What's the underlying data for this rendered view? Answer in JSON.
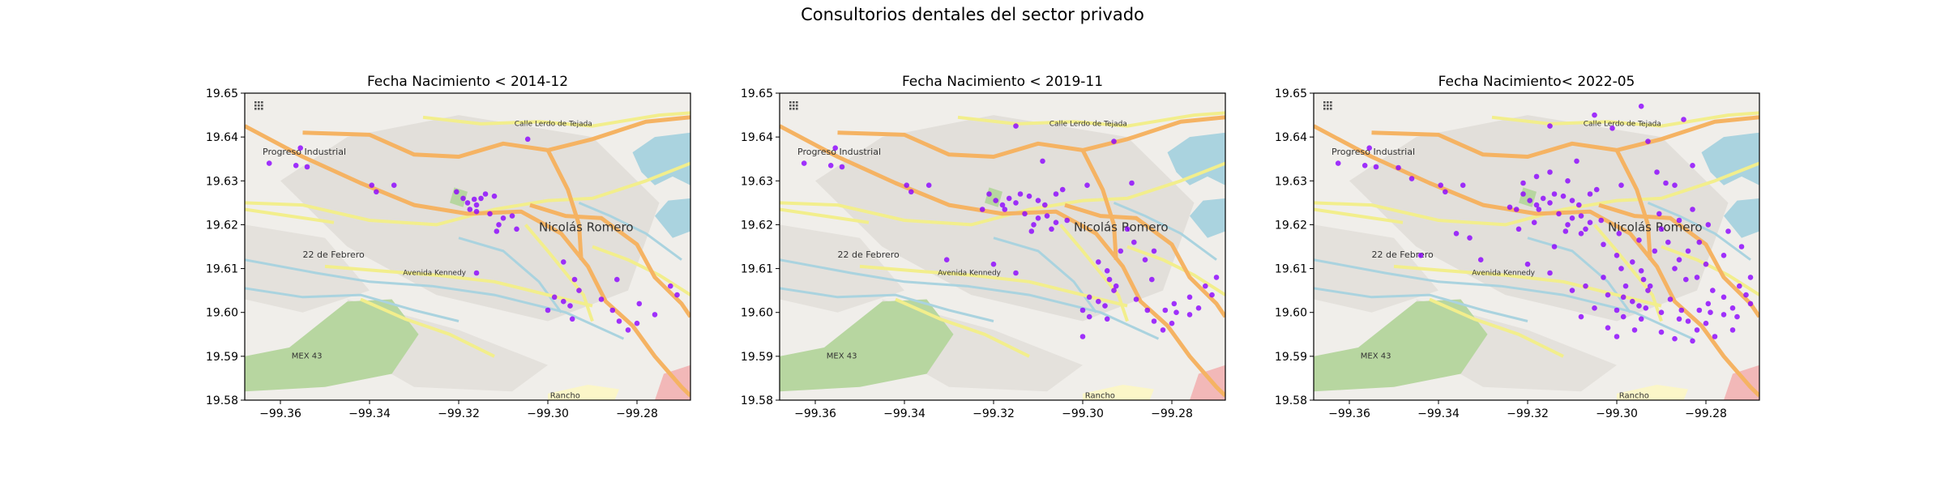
{
  "figure": {
    "title": "Consultorios dentales del sector privado"
  },
  "colors": {
    "points": "#8b00ff",
    "road_major": "#f5b363",
    "road_minor": "#f2ee8c",
    "water": "#aad3df",
    "park": "#b7d6a0",
    "land": "#f0eeea"
  },
  "map_labels": [
    {
      "text": "Progreso Industrial",
      "lon": -99.364,
      "lat": 19.636,
      "size": 11
    },
    {
      "text": "Nicolás Romero",
      "lon": -99.302,
      "lat": 19.6185,
      "size": 15
    },
    {
      "text": "22 de Febrero",
      "lon": -99.355,
      "lat": 19.6125,
      "size": 11
    },
    {
      "text": "Avenida Kennedy",
      "lon": -99.3325,
      "lat": 19.6085,
      "size": 9
    },
    {
      "text": "Calle Lerdo de Tejada",
      "lon": -99.3075,
      "lat": 19.6425,
      "size": 9
    },
    {
      "text": "MEX 43",
      "lon": -99.3575,
      "lat": 19.5895,
      "size": 10
    },
    {
      "text": "Rancho",
      "lon": -99.2995,
      "lat": 19.5805,
      "size": 10
    }
  ],
  "chart_data": [
    {
      "type": "scatter",
      "title": "Fecha Nacimiento < 2014-12",
      "xlim": [
        -99.368,
        -99.268
      ],
      "ylim": [
        19.58,
        19.65
      ],
      "xticks": [
        "−99.36",
        "−99.34",
        "−99.32",
        "−99.30",
        "−99.28"
      ],
      "xtick_values": [
        -99.36,
        -99.34,
        -99.32,
        -99.3,
        -99.28
      ],
      "yticks": [
        "19.58",
        "19.59",
        "19.60",
        "19.61",
        "19.62",
        "19.63",
        "19.64",
        "19.65"
      ],
      "ytick_values": [
        19.58,
        19.59,
        19.6,
        19.61,
        19.62,
        19.63,
        19.64,
        19.65
      ],
      "points": [
        [
          -99.3555,
          19.6375
        ],
        [
          -99.3625,
          19.634
        ],
        [
          -99.3565,
          19.6335
        ],
        [
          -99.354,
          19.6332
        ],
        [
          -99.3395,
          19.629
        ],
        [
          -99.3385,
          19.6275
        ],
        [
          -99.3345,
          19.629
        ],
        [
          -99.3205,
          19.6275
        ],
        [
          -99.319,
          19.626
        ],
        [
          -99.318,
          19.625
        ],
        [
          -99.3165,
          19.6258
        ],
        [
          -99.316,
          19.6245
        ],
        [
          -99.315,
          19.626
        ],
        [
          -99.3175,
          19.6235
        ],
        [
          -99.314,
          19.627
        ],
        [
          -99.312,
          19.6265
        ],
        [
          -99.313,
          19.6225
        ],
        [
          -99.31,
          19.6215
        ],
        [
          -99.308,
          19.622
        ],
        [
          -99.311,
          19.62
        ],
        [
          -99.307,
          19.619
        ],
        [
          -99.3115,
          19.6185
        ],
        [
          -99.316,
          19.623
        ],
        [
          -99.3045,
          19.6395
        ],
        [
          -99.316,
          19.609
        ],
        [
          -99.2965,
          19.6115
        ],
        [
          -99.294,
          19.6075
        ],
        [
          -99.293,
          19.605
        ],
        [
          -99.2985,
          19.6035
        ],
        [
          -99.3,
          19.6005
        ],
        [
          -99.2965,
          19.6025
        ],
        [
          -99.288,
          19.603
        ],
        [
          -99.2855,
          19.6005
        ],
        [
          -99.284,
          19.598
        ],
        [
          -99.282,
          19.596
        ],
        [
          -99.28,
          19.5975
        ],
        [
          -99.276,
          19.5995
        ],
        [
          -99.2795,
          19.602
        ],
        [
          -99.2725,
          19.606
        ],
        [
          -99.271,
          19.604
        ],
        [
          -99.2845,
          19.6075
        ],
        [
          -99.2945,
          19.5985
        ],
        [
          -99.295,
          19.6015
        ]
      ]
    },
    {
      "type": "scatter",
      "title": "Fecha Nacimiento < 2019-11",
      "xlim": [
        -99.368,
        -99.268
      ],
      "ylim": [
        19.58,
        19.65
      ],
      "xticks": [
        "−99.36",
        "−99.34",
        "−99.32",
        "−99.30",
        "−99.28"
      ],
      "xtick_values": [
        -99.36,
        -99.34,
        -99.32,
        -99.3,
        -99.28
      ],
      "yticks": [
        "19.58",
        "19.59",
        "19.60",
        "19.61",
        "19.62",
        "19.63",
        "19.64",
        "19.65"
      ],
      "ytick_values": [
        19.58,
        19.59,
        19.6,
        19.61,
        19.62,
        19.63,
        19.64,
        19.65
      ],
      "points": [
        [
          -99.3555,
          19.6375
        ],
        [
          -99.3625,
          19.634
        ],
        [
          -99.3565,
          19.6335
        ],
        [
          -99.354,
          19.6332
        ],
        [
          -99.3395,
          19.629
        ],
        [
          -99.3385,
          19.6275
        ],
        [
          -99.3345,
          19.629
        ],
        [
          -99.3305,
          19.612
        ],
        [
          -99.3225,
          19.6235
        ],
        [
          -99.321,
          19.627
        ],
        [
          -99.3195,
          19.6255
        ],
        [
          -99.318,
          19.6245
        ],
        [
          -99.3165,
          19.626
        ],
        [
          -99.315,
          19.625
        ],
        [
          -99.3175,
          19.6235
        ],
        [
          -99.314,
          19.627
        ],
        [
          -99.312,
          19.6265
        ],
        [
          -99.31,
          19.6255
        ],
        [
          -99.3085,
          19.6245
        ],
        [
          -99.306,
          19.627
        ],
        [
          -99.313,
          19.6225
        ],
        [
          -99.31,
          19.6215
        ],
        [
          -99.308,
          19.622
        ],
        [
          -99.311,
          19.62
        ],
        [
          -99.307,
          19.619
        ],
        [
          -99.3115,
          19.6185
        ],
        [
          -99.306,
          19.6205
        ],
        [
          -99.3035,
          19.621
        ],
        [
          -99.315,
          19.6425
        ],
        [
          -99.309,
          19.6345
        ],
        [
          -99.3045,
          19.628
        ],
        [
          -99.299,
          19.629
        ],
        [
          -99.293,
          19.639
        ],
        [
          -99.289,
          19.6295
        ],
        [
          -99.32,
          19.611
        ],
        [
          -99.315,
          19.609
        ],
        [
          -99.2965,
          19.6115
        ],
        [
          -99.2945,
          19.6095
        ],
        [
          -99.294,
          19.6075
        ],
        [
          -99.2925,
          19.606
        ],
        [
          -99.293,
          19.605
        ],
        [
          -99.2985,
          19.6035
        ],
        [
          -99.3,
          19.6005
        ],
        [
          -99.2965,
          19.6025
        ],
        [
          -99.288,
          19.603
        ],
        [
          -99.2855,
          19.6005
        ],
        [
          -99.284,
          19.598
        ],
        [
          -99.282,
          19.596
        ],
        [
          -99.28,
          19.5975
        ],
        [
          -99.276,
          19.5995
        ],
        [
          -99.2795,
          19.602
        ],
        [
          -99.2725,
          19.606
        ],
        [
          -99.271,
          19.604
        ],
        [
          -99.2845,
          19.6075
        ],
        [
          -99.2945,
          19.5985
        ],
        [
          -99.295,
          19.6015
        ],
        [
          -99.2915,
          19.614
        ],
        [
          -99.2885,
          19.616
        ],
        [
          -99.286,
          19.612
        ],
        [
          -99.29,
          19.619
        ],
        [
          -99.284,
          19.614
        ],
        [
          -99.276,
          19.6035
        ],
        [
          -99.274,
          19.601
        ],
        [
          -99.279,
          19.6
        ],
        [
          -99.2815,
          19.6005
        ],
        [
          -99.27,
          19.608
        ],
        [
          -99.3,
          19.5945
        ],
        [
          -99.2985,
          19.599
        ]
      ]
    },
    {
      "type": "scatter",
      "title": "Fecha Nacimiento< 2022-05",
      "xlim": [
        -99.368,
        -99.268
      ],
      "ylim": [
        19.58,
        19.65
      ],
      "xticks": [
        "−99.36",
        "−99.34",
        "−99.32",
        "−99.30",
        "−99.28"
      ],
      "xtick_values": [
        -99.36,
        -99.34,
        -99.32,
        -99.3,
        -99.28
      ],
      "yticks": [
        "19.58",
        "19.59",
        "19.60",
        "19.61",
        "19.62",
        "19.63",
        "19.64",
        "19.65"
      ],
      "ytick_values": [
        19.58,
        19.59,
        19.6,
        19.61,
        19.62,
        19.63,
        19.64,
        19.65
      ],
      "points": [
        [
          -99.3555,
          19.6375
        ],
        [
          -99.3625,
          19.634
        ],
        [
          -99.3565,
          19.6335
        ],
        [
          -99.354,
          19.6332
        ],
        [
          -99.349,
          19.633
        ],
        [
          -99.346,
          19.6305
        ],
        [
          -99.3395,
          19.629
        ],
        [
          -99.3385,
          19.6275
        ],
        [
          -99.3345,
          19.629
        ],
        [
          -99.3305,
          19.612
        ],
        [
          -99.344,
          19.613
        ],
        [
          -99.336,
          19.618
        ],
        [
          -99.333,
          19.617
        ],
        [
          -99.322,
          19.619
        ],
        [
          -99.3185,
          19.6205
        ],
        [
          -99.324,
          19.624
        ],
        [
          -99.3225,
          19.6235
        ],
        [
          -99.321,
          19.627
        ],
        [
          -99.3195,
          19.6255
        ],
        [
          -99.318,
          19.6245
        ],
        [
          -99.3165,
          19.626
        ],
        [
          -99.315,
          19.625
        ],
        [
          -99.3175,
          19.6235
        ],
        [
          -99.314,
          19.627
        ],
        [
          -99.312,
          19.6265
        ],
        [
          -99.31,
          19.6255
        ],
        [
          -99.3085,
          19.6245
        ],
        [
          -99.306,
          19.627
        ],
        [
          -99.313,
          19.6225
        ],
        [
          -99.31,
          19.6215
        ],
        [
          -99.308,
          19.622
        ],
        [
          -99.311,
          19.62
        ],
        [
          -99.307,
          19.619
        ],
        [
          -99.3115,
          19.6185
        ],
        [
          -99.306,
          19.6205
        ],
        [
          -99.3035,
          19.621
        ],
        [
          -99.321,
          19.6295
        ],
        [
          -99.318,
          19.631
        ],
        [
          -99.315,
          19.632
        ],
        [
          -99.311,
          19.63
        ],
        [
          -99.315,
          19.6425
        ],
        [
          -99.309,
          19.6345
        ],
        [
          -99.3045,
          19.628
        ],
        [
          -99.299,
          19.629
        ],
        [
          -99.293,
          19.639
        ],
        [
          -99.289,
          19.6295
        ],
        [
          -99.305,
          19.645
        ],
        [
          -99.301,
          19.642
        ],
        [
          -99.2945,
          19.647
        ],
        [
          -99.285,
          19.644
        ],
        [
          -99.32,
          19.611
        ],
        [
          -99.315,
          19.609
        ],
        [
          -99.2965,
          19.6115
        ],
        [
          -99.2945,
          19.6095
        ],
        [
          -99.294,
          19.6075
        ],
        [
          -99.2925,
          19.606
        ],
        [
          -99.293,
          19.605
        ],
        [
          -99.2985,
          19.6035
        ],
        [
          -99.3,
          19.6005
        ],
        [
          -99.2965,
          19.6025
        ],
        [
          -99.288,
          19.603
        ],
        [
          -99.2855,
          19.6005
        ],
        [
          -99.284,
          19.598
        ],
        [
          -99.282,
          19.596
        ],
        [
          -99.28,
          19.5975
        ],
        [
          -99.276,
          19.5995
        ],
        [
          -99.2795,
          19.602
        ],
        [
          -99.2725,
          19.606
        ],
        [
          -99.271,
          19.604
        ],
        [
          -99.2845,
          19.6075
        ],
        [
          -99.2945,
          19.5985
        ],
        [
          -99.295,
          19.6015
        ],
        [
          -99.2915,
          19.614
        ],
        [
          -99.2885,
          19.616
        ],
        [
          -99.286,
          19.612
        ],
        [
          -99.29,
          19.619
        ],
        [
          -99.284,
          19.614
        ],
        [
          -99.276,
          19.6035
        ],
        [
          -99.274,
          19.601
        ],
        [
          -99.279,
          19.6
        ],
        [
          -99.2815,
          19.6005
        ],
        [
          -99.27,
          19.608
        ],
        [
          -99.3,
          19.5945
        ],
        [
          -99.2985,
          19.599
        ],
        [
          -99.303,
          19.608
        ],
        [
          -99.302,
          19.604
        ],
        [
          -99.305,
          19.601
        ],
        [
          -99.308,
          19.599
        ],
        [
          -99.307,
          19.606
        ],
        [
          -99.31,
          19.605
        ],
        [
          -99.302,
          19.5965
        ],
        [
          -99.296,
          19.596
        ],
        [
          -99.29,
          19.5955
        ],
        [
          -99.287,
          19.594
        ],
        [
          -99.283,
          19.5935
        ],
        [
          -99.278,
          19.5945
        ],
        [
          -99.274,
          19.596
        ],
        [
          -99.2785,
          19.605
        ],
        [
          -99.282,
          19.608
        ],
        [
          -99.287,
          19.61
        ],
        [
          -99.28,
          19.611
        ],
        [
          -99.276,
          19.613
        ],
        [
          -99.272,
          19.615
        ],
        [
          -99.275,
          19.6185
        ],
        [
          -99.2795,
          19.62
        ],
        [
          -99.283,
          19.6235
        ],
        [
          -99.286,
          19.621
        ],
        [
          -99.2905,
          19.6225
        ],
        [
          -99.295,
          19.6165
        ],
        [
          -99.2995,
          19.618
        ],
        [
          -99.3,
          19.613
        ],
        [
          -99.291,
          19.632
        ],
        [
          -99.287,
          19.629
        ],
        [
          -99.283,
          19.6335
        ],
        [
          -99.308,
          19.618
        ],
        [
          -99.314,
          19.615
        ],
        [
          -99.303,
          19.6155
        ],
        [
          -99.299,
          19.61
        ],
        [
          -99.2935,
          19.601
        ],
        [
          -99.29,
          19.6
        ],
        [
          -99.286,
          19.5985
        ],
        [
          -99.273,
          19.599
        ],
        [
          -99.27,
          19.602
        ],
        [
          -99.2815,
          19.616
        ],
        [
          -99.298,
          19.606
        ]
      ]
    }
  ]
}
